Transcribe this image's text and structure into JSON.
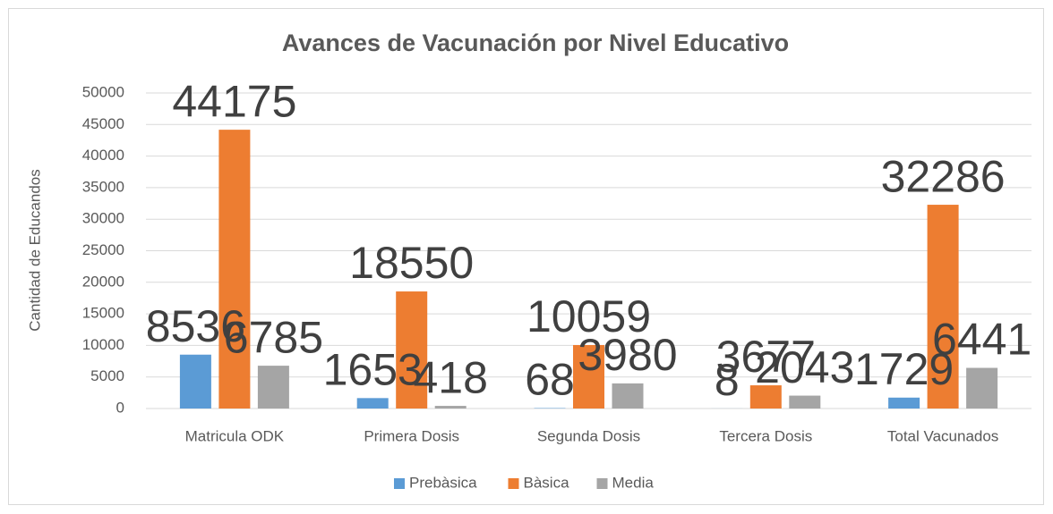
{
  "chart_data": {
    "type": "bar",
    "title": "Avances de Vacunación por Nivel Educativo",
    "y_label": "Cantidad de Educandos",
    "categories": [
      "Matricula ODK",
      "Primera Dosis",
      "Segunda Dosis",
      "Tercera Dosis",
      "Total Vacunados"
    ],
    "series": [
      {
        "name": "Prebàsica",
        "color": "#5b9bd5",
        "values": [
          8536,
          1653,
          68,
          8,
          1729
        ]
      },
      {
        "name": "Bàsica",
        "color": "#ed7d31",
        "values": [
          44175,
          18550,
          10059,
          3677,
          32286
        ]
      },
      {
        "name": "Media",
        "color": "#a5a5a5",
        "values": [
          6785,
          418,
          3980,
          2043,
          6441
        ]
      }
    ],
    "ylim": [
      0,
      50000
    ],
    "yticks": [
      0,
      5000,
      10000,
      15000,
      20000,
      25000,
      30000,
      35000,
      40000,
      45000,
      50000
    ],
    "grid": true,
    "legend": "bottom"
  }
}
